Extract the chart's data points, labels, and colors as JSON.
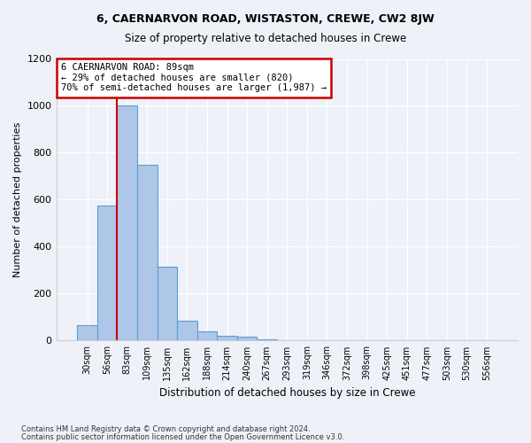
{
  "title1": "6, CAERNARVON ROAD, WISTASTON, CREWE, CW2 8JW",
  "title2": "Size of property relative to detached houses in Crewe",
  "xlabel": "Distribution of detached houses by size in Crewe",
  "ylabel": "Number of detached properties",
  "bar_values": [
    65,
    575,
    1000,
    750,
    315,
    85,
    40,
    20,
    15,
    5,
    0,
    0,
    0,
    0,
    0,
    0,
    0,
    0,
    0,
    0,
    0
  ],
  "bar_labels": [
    "30sqm",
    "56sqm",
    "83sqm",
    "109sqm",
    "135sqm",
    "162sqm",
    "188sqm",
    "214sqm",
    "240sqm",
    "267sqm",
    "293sqm",
    "319sqm",
    "346sqm",
    "372sqm",
    "398sqm",
    "425sqm",
    "451sqm",
    "477sqm",
    "503sqm",
    "530sqm",
    "556sqm"
  ],
  "bar_color": "#aec6e8",
  "bar_edge_color": "#5a9fd4",
  "vline_x_index": 2,
  "vline_color": "#cc0000",
  "annotation_title": "6 CAERNARVON ROAD: 89sqm",
  "annotation_line1": "← 29% of detached houses are smaller (820)",
  "annotation_line2": "70% of semi-detached houses are larger (1,987) →",
  "annotation_box_color": "#ffffff",
  "annotation_box_edge": "#cc0000",
  "ylim": [
    0,
    1200
  ],
  "yticks": [
    0,
    200,
    400,
    600,
    800,
    1000,
    1200
  ],
  "footer1": "Contains HM Land Registry data © Crown copyright and database right 2024.",
  "footer2": "Contains public sector information licensed under the Open Government Licence v3.0.",
  "bg_color": "#eef2f8",
  "plot_bg_color": "#eef2f8"
}
